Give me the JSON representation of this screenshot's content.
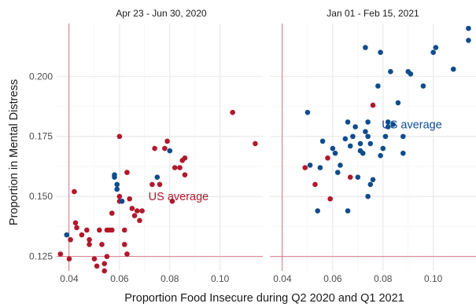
{
  "chart_data": {
    "type": "scatter",
    "xlabel": "Proportion Food Insecure during Q2 2020 and Q1 2021",
    "ylabel": "Proportion in Mental Distress",
    "xlim": [
      0.035,
      0.117
    ],
    "ylim": [
      0.119,
      0.222
    ],
    "x_ticks": [
      0.04,
      0.06,
      0.08,
      0.1
    ],
    "x_tick_labels": [
      "0.04",
      "0.06",
      "0.08",
      "0.10"
    ],
    "y_ticks": [
      0.125,
      0.15,
      0.175,
      0.2
    ],
    "y_tick_labels": [
      "0.125",
      "0.150",
      "0.175",
      "0.200"
    ],
    "grid": true,
    "reference_lines": {
      "x": 0.0399,
      "y": 0.125
    },
    "colors": {
      "red": "#b2182b",
      "blue": "#0f4c8c",
      "ref_line": "#d06a7e"
    },
    "panels": [
      {
        "title": "Apr 23 - Jun 30, 2020",
        "annotation": {
          "text": "US average",
          "x": 0.0835,
          "y": 0.15,
          "color": "red"
        },
        "points": [
          [
            0.0365,
            0.126,
            "red"
          ],
          [
            0.039,
            0.134,
            "blue"
          ],
          [
            0.04,
            0.124,
            "red"
          ],
          [
            0.0405,
            0.132,
            "red"
          ],
          [
            0.042,
            0.152,
            "red"
          ],
          [
            0.0425,
            0.139,
            "red"
          ],
          [
            0.043,
            0.137,
            "red"
          ],
          [
            0.045,
            0.134,
            "red"
          ],
          [
            0.047,
            0.136,
            "red"
          ],
          [
            0.048,
            0.132,
            "red"
          ],
          [
            0.048,
            0.13,
            "red"
          ],
          [
            0.05,
            0.124,
            "red"
          ],
          [
            0.051,
            0.121,
            "red"
          ],
          [
            0.052,
            0.136,
            "red"
          ],
          [
            0.053,
            0.13,
            "red"
          ],
          [
            0.054,
            0.122,
            "red"
          ],
          [
            0.054,
            0.119,
            "red"
          ],
          [
            0.055,
            0.125,
            "red"
          ],
          [
            0.055,
            0.136,
            "red"
          ],
          [
            0.056,
            0.136,
            "red"
          ],
          [
            0.057,
            0.136,
            "red"
          ],
          [
            0.057,
            0.143,
            "red"
          ],
          [
            0.058,
            0.159,
            "blue"
          ],
          [
            0.058,
            0.158,
            "blue"
          ],
          [
            0.059,
            0.155,
            "blue"
          ],
          [
            0.059,
            0.153,
            "blue"
          ],
          [
            0.06,
            0.15,
            "red"
          ],
          [
            0.06,
            0.148,
            "red"
          ],
          [
            0.06,
            0.175,
            "red"
          ],
          [
            0.061,
            0.148,
            "blue"
          ],
          [
            0.062,
            0.13,
            "red"
          ],
          [
            0.062,
            0.136,
            "red"
          ],
          [
            0.063,
            0.126,
            "red"
          ],
          [
            0.063,
            0.16,
            "red"
          ],
          [
            0.064,
            0.149,
            "red"
          ],
          [
            0.065,
            0.145,
            "red"
          ],
          [
            0.066,
            0.142,
            "red"
          ],
          [
            0.067,
            0.144,
            "red"
          ],
          [
            0.068,
            0.14,
            "red"
          ],
          [
            0.069,
            0.144,
            "red"
          ],
          [
            0.073,
            0.155,
            "red"
          ],
          [
            0.074,
            0.17,
            "red"
          ],
          [
            0.075,
            0.158,
            "blue"
          ],
          [
            0.076,
            0.155,
            "red"
          ],
          [
            0.078,
            0.17,
            "red"
          ],
          [
            0.079,
            0.173,
            "red"
          ],
          [
            0.08,
            0.169,
            "blue"
          ],
          [
            0.081,
            0.148,
            "red"
          ],
          [
            0.082,
            0.162,
            "red"
          ],
          [
            0.084,
            0.162,
            "red"
          ],
          [
            0.085,
            0.165,
            "red"
          ],
          [
            0.086,
            0.166,
            "red"
          ],
          [
            0.086,
            0.159,
            "red"
          ],
          [
            0.105,
            0.185,
            "red"
          ],
          [
            0.114,
            0.172,
            "red"
          ]
        ]
      },
      {
        "title": "Jan 01 - Feb 15, 2021",
        "annotation": {
          "text": "US average",
          "x": 0.0915,
          "y": 0.18,
          "color": "blue"
        },
        "points": [
          [
            0.049,
            0.162,
            "red"
          ],
          [
            0.05,
            0.185,
            "blue"
          ],
          [
            0.051,
            0.163,
            "blue"
          ],
          [
            0.053,
            0.155,
            "red"
          ],
          [
            0.054,
            0.144,
            "blue"
          ],
          [
            0.055,
            0.162,
            "blue"
          ],
          [
            0.056,
            0.173,
            "blue"
          ],
          [
            0.058,
            0.166,
            "red"
          ],
          [
            0.059,
            0.149,
            "red"
          ],
          [
            0.06,
            0.17,
            "blue"
          ],
          [
            0.061,
            0.168,
            "blue"
          ],
          [
            0.062,
            0.16,
            "blue"
          ],
          [
            0.063,
            0.163,
            "blue"
          ],
          [
            0.065,
            0.174,
            "blue"
          ],
          [
            0.066,
            0.181,
            "blue"
          ],
          [
            0.066,
            0.144,
            "blue"
          ],
          [
            0.067,
            0.158,
            "red"
          ],
          [
            0.067,
            0.171,
            "blue"
          ],
          [
            0.068,
            0.175,
            "blue"
          ],
          [
            0.069,
            0.179,
            "blue"
          ],
          [
            0.07,
            0.158,
            "blue"
          ],
          [
            0.071,
            0.172,
            "blue"
          ],
          [
            0.071,
            0.169,
            "blue"
          ],
          [
            0.072,
            0.168,
            "blue"
          ],
          [
            0.073,
            0.177,
            "blue"
          ],
          [
            0.073,
            0.212,
            "blue"
          ],
          [
            0.074,
            0.15,
            "blue"
          ],
          [
            0.074,
            0.181,
            "blue"
          ],
          [
            0.074,
            0.175,
            "blue"
          ],
          [
            0.075,
            0.172,
            "blue"
          ],
          [
            0.075,
            0.155,
            "blue"
          ],
          [
            0.076,
            0.188,
            "red"
          ],
          [
            0.076,
            0.157,
            "blue"
          ],
          [
            0.078,
            0.196,
            "blue"
          ],
          [
            0.079,
            0.21,
            "blue"
          ],
          [
            0.079,
            0.167,
            "blue"
          ],
          [
            0.08,
            0.17,
            "blue"
          ],
          [
            0.081,
            0.175,
            "blue"
          ],
          [
            0.082,
            0.181,
            "blue"
          ],
          [
            0.082,
            0.179,
            "blue"
          ],
          [
            0.083,
            0.202,
            "blue"
          ],
          [
            0.084,
            0.18,
            "blue"
          ],
          [
            0.086,
            0.189,
            "blue"
          ],
          [
            0.088,
            0.175,
            "blue"
          ],
          [
            0.088,
            0.168,
            "blue"
          ],
          [
            0.09,
            0.202,
            "blue"
          ],
          [
            0.091,
            0.201,
            "blue"
          ],
          [
            0.096,
            0.196,
            "blue"
          ],
          [
            0.1,
            0.21,
            "blue"
          ],
          [
            0.101,
            0.212,
            "blue"
          ],
          [
            0.108,
            0.203,
            "blue"
          ],
          [
            0.114,
            0.22,
            "blue"
          ],
          [
            0.114,
            0.215,
            "blue"
          ]
        ]
      }
    ]
  }
}
